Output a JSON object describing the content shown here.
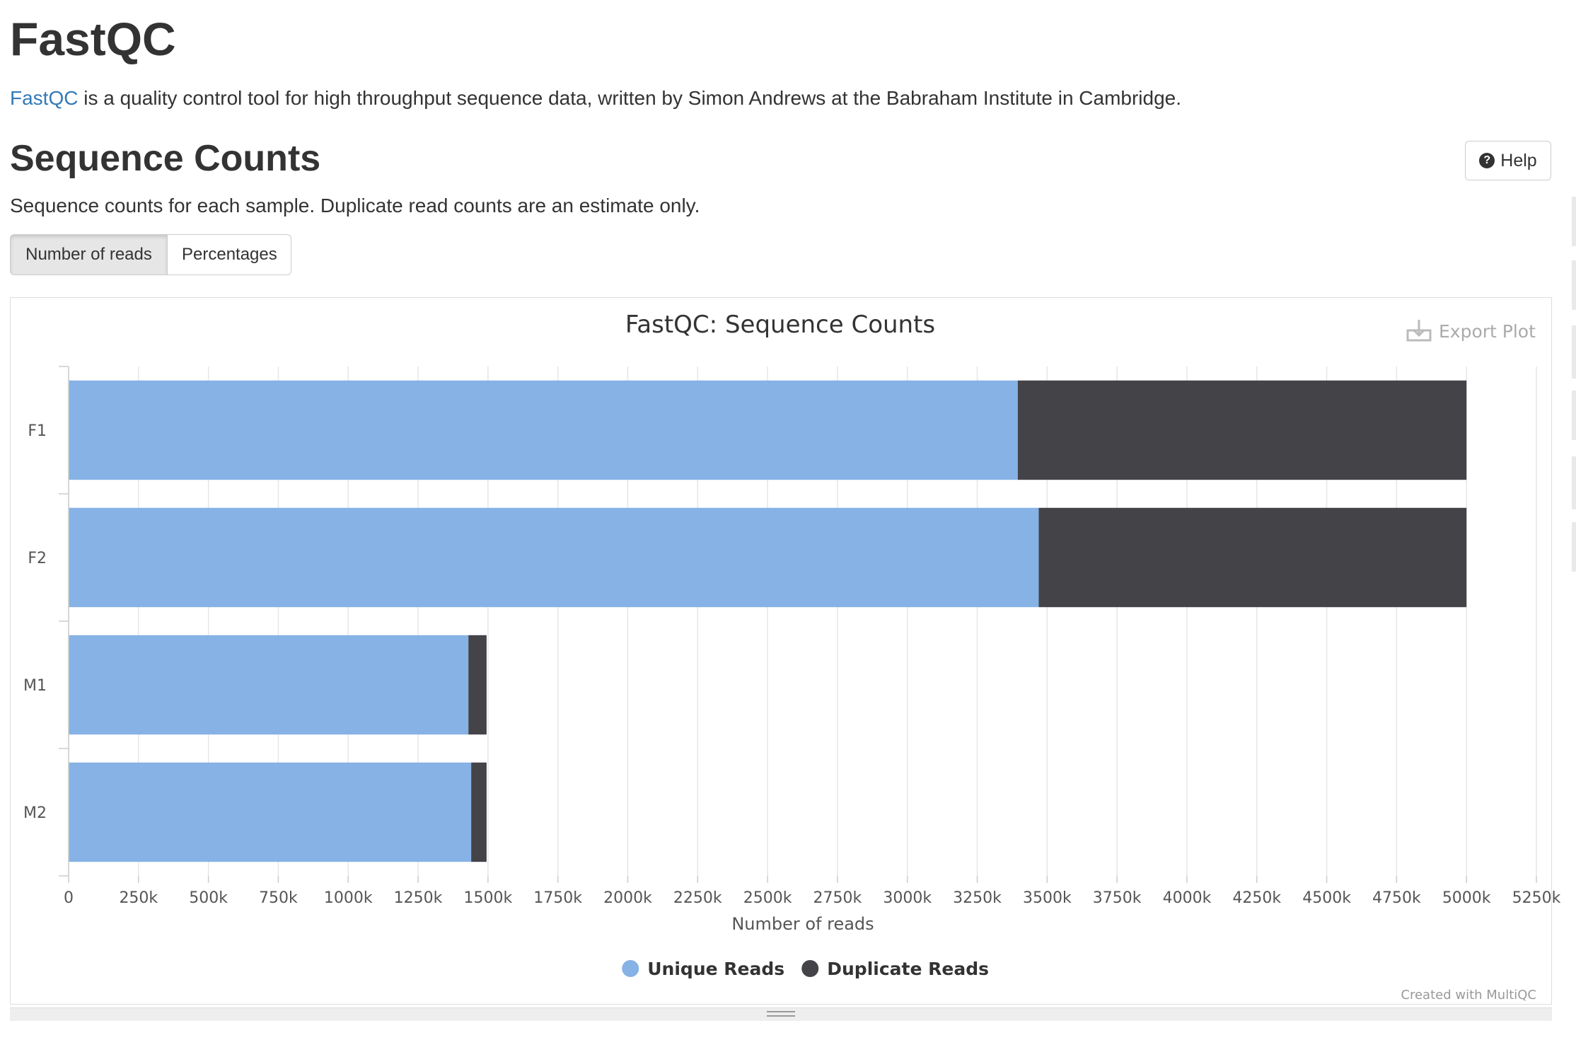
{
  "header": {
    "title": "FastQC",
    "intro_link": "FastQC",
    "intro_text": " is a quality control tool for high throughput sequence data, written by Simon Andrews at the Babraham Institute in Cambridge."
  },
  "section": {
    "title": "Sequence Counts",
    "help_label": "Help",
    "description": "Sequence counts for each sample. Duplicate read counts are an estimate only.",
    "buttons": [
      "Number of reads",
      "Percentages"
    ],
    "active_button": "Number of reads"
  },
  "plot": {
    "export_label": "Export Plot",
    "credit": "Created with MultiQC"
  },
  "chart_data": {
    "type": "bar",
    "orientation": "horizontal",
    "stacked": true,
    "title": "FastQC: Sequence Counts",
    "xlabel": "Number of reads",
    "ylabel": "",
    "categories": [
      "F1",
      "F2",
      "M1",
      "M2"
    ],
    "series": [
      {
        "name": "Unique Reads",
        "color": "#86b2e5",
        "values": [
          3395000,
          3470000,
          1430000,
          1440000
        ]
      },
      {
        "name": "Duplicate Reads",
        "color": "#434348",
        "values": [
          1605000,
          1530000,
          65000,
          55000
        ]
      }
    ],
    "xlim": [
      0,
      5250000
    ],
    "x_ticks": [
      "0",
      "250k",
      "500k",
      "750k",
      "1000k",
      "1250k",
      "1500k",
      "1750k",
      "2000k",
      "2250k",
      "2500k",
      "2750k",
      "3000k",
      "3250k",
      "3500k",
      "3750k",
      "4000k",
      "4250k",
      "4500k",
      "4750k",
      "5000k",
      "5250k"
    ],
    "grid": true,
    "legend_position": "bottom-center"
  }
}
